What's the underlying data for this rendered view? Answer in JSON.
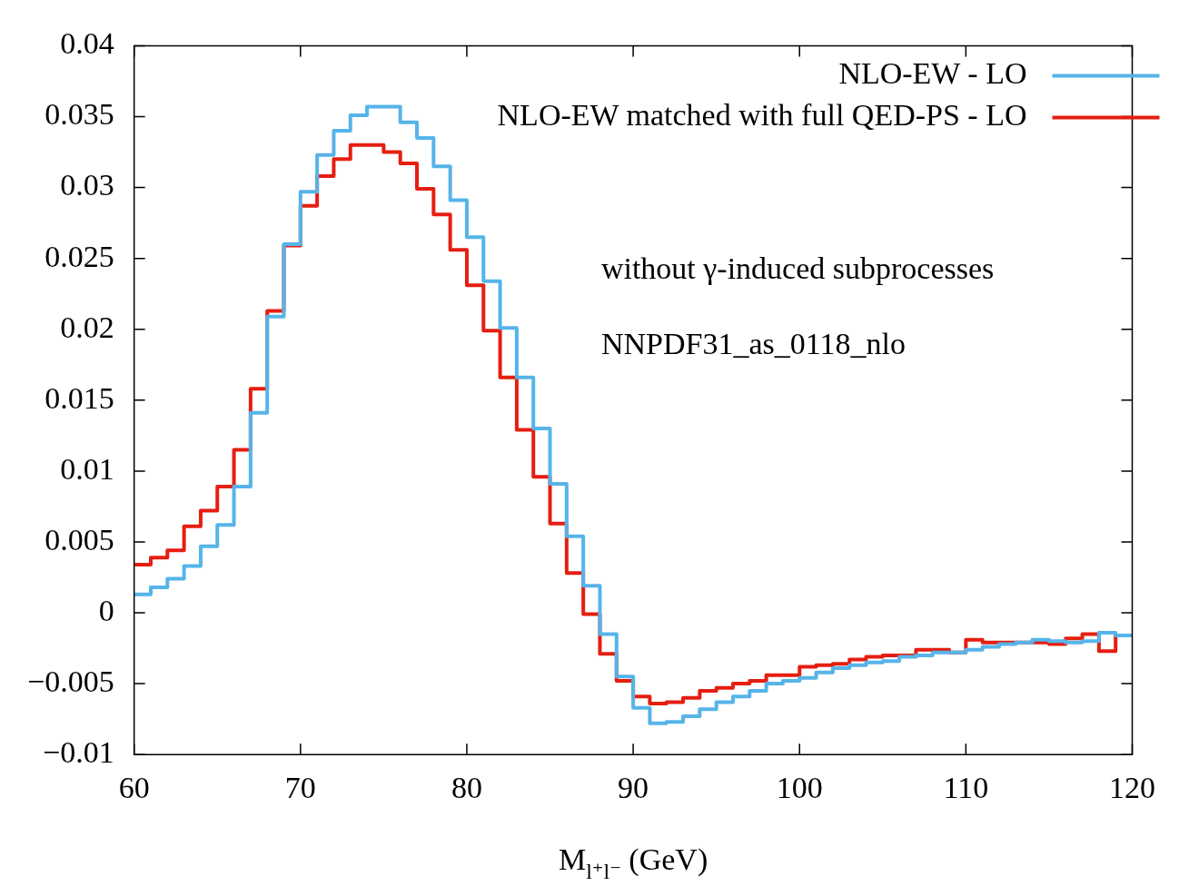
{
  "chart_data": {
    "type": "histogram",
    "xlabel": "M$_{l⁺l⁻}$ (GeV)",
    "bins": [
      60,
      61,
      62,
      63,
      64,
      65,
      66,
      67,
      68,
      69,
      70,
      71,
      72,
      73,
      74,
      75,
      76,
      77,
      78,
      79,
      80,
      81,
      82,
      83,
      84,
      85,
      86,
      87,
      88,
      89,
      90,
      91,
      92,
      93,
      94,
      95,
      96,
      97,
      98,
      99,
      100,
      101,
      102,
      103,
      104,
      105,
      106,
      107,
      108,
      109,
      110,
      111,
      112,
      113,
      114,
      115,
      116,
      117,
      118,
      119,
      120
    ],
    "series": [
      {
        "name": "NLO-EW - LO",
        "color": "#56b4e9",
        "values": [
          0.0013,
          0.0018,
          0.0024,
          0.0033,
          0.0047,
          0.0062,
          0.0089,
          0.0141,
          0.0209,
          0.026,
          0.0297,
          0.0323,
          0.034,
          0.0351,
          0.0357,
          0.0357,
          0.0346,
          0.0335,
          0.0315,
          0.0291,
          0.0265,
          0.0234,
          0.0201,
          0.0166,
          0.013,
          0.0091,
          0.0054,
          0.0019,
          -0.0015,
          -0.0045,
          -0.0067,
          -0.0078,
          -0.0077,
          -0.0073,
          -0.0068,
          -0.0063,
          -0.0059,
          -0.0055,
          -0.005,
          -0.0048,
          -0.0046,
          -0.0042,
          -0.0039,
          -0.0037,
          -0.0035,
          -0.0034,
          -0.0031,
          -0.003,
          -0.0028,
          -0.0028,
          -0.0026,
          -0.0024,
          -0.0022,
          -0.0021,
          -0.0019,
          -0.002,
          -0.0021,
          -0.002,
          -0.0014,
          -0.0016
        ]
      },
      {
        "name": "NLO-EW matched with full QED-PS - LO",
        "color": "#e51e10",
        "values": [
          0.0034,
          0.0039,
          0.0044,
          0.0061,
          0.0072,
          0.0089,
          0.0115,
          0.0158,
          0.0213,
          0.0259,
          0.0287,
          0.0308,
          0.032,
          0.033,
          0.033,
          0.0325,
          0.0317,
          0.0299,
          0.0281,
          0.0256,
          0.0231,
          0.0199,
          0.0166,
          0.0129,
          0.0096,
          0.0063,
          0.0028,
          -0.0001,
          -0.0029,
          -0.0048,
          -0.0059,
          -0.0064,
          -0.0063,
          -0.006,
          -0.0055,
          -0.0053,
          -0.005,
          -0.0048,
          -0.0044,
          -0.0044,
          -0.0038,
          -0.0037,
          -0.0036,
          -0.0033,
          -0.0031,
          -0.003,
          -0.003,
          -0.0026,
          -0.0026,
          -0.0028,
          -0.0019,
          -0.0021,
          -0.0021,
          -0.0021,
          -0.0021,
          -0.0022,
          -0.0018,
          -0.0015,
          -0.0027,
          -0.0016
        ]
      }
    ],
    "xlim": [
      60,
      120
    ],
    "xticks": [
      60,
      70,
      80,
      90,
      100,
      110,
      120
    ],
    "ylim": [
      -0.01,
      0.04
    ],
    "yticks": [
      {
        "value": -0.01,
        "label": "−0.01"
      },
      {
        "value": -0.005,
        "label": "−0.005"
      },
      0,
      0.005,
      0.01,
      0.015,
      0.02,
      0.025,
      0.03,
      0.035,
      0.04
    ],
    "annotations": [
      "without γ-induced subprocesses",
      "NNPDF31_as_0118_nlo"
    ],
    "legend": "top right",
    "grid": false,
    "line_style": "solid"
  }
}
